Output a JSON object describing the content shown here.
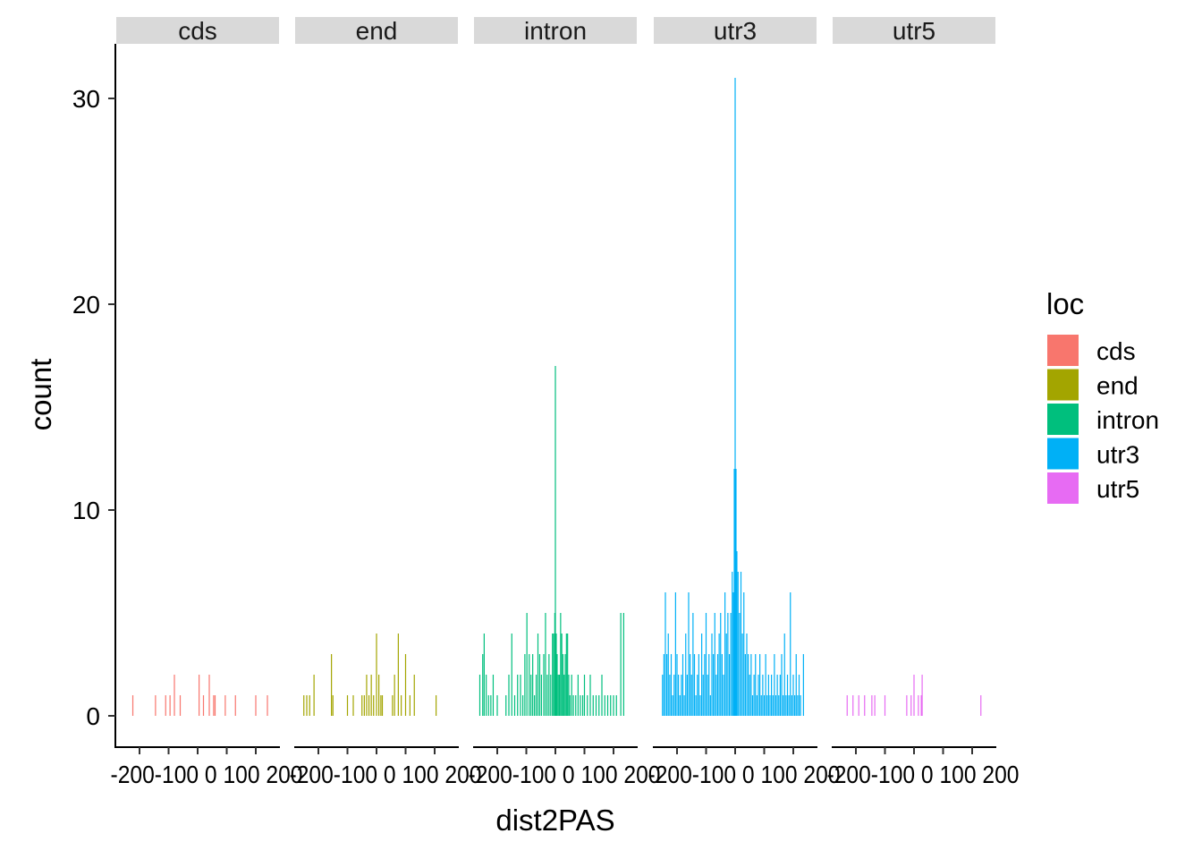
{
  "chart_data": {
    "type": "bar",
    "subtype": "faceted-histogram",
    "xlabel": "dist2PAS",
    "ylabel": "count",
    "ylim": [
      0,
      32
    ],
    "xlim": [
      -280,
      280
    ],
    "y_ticks": [
      0,
      10,
      20,
      30
    ],
    "x_ticks": [
      -200,
      -100,
      0,
      100,
      200
    ],
    "x_tick_label_text": "-200-100 0 100 200",
    "bar_width": 2,
    "legend": {
      "title": "loc",
      "position": "right",
      "items": [
        {
          "label": "cds",
          "color": "#F8766D"
        },
        {
          "label": "end",
          "color": "#A3A500"
        },
        {
          "label": "intron",
          "color": "#00BF7D"
        },
        {
          "label": "utr3",
          "color": "#00B0F6"
        },
        {
          "label": "utr5",
          "color": "#E76BF3"
        }
      ]
    },
    "facets": [
      {
        "label": "cds",
        "color": "#F8766D",
        "bars": [
          {
            "x": -223,
            "y": 1
          },
          {
            "x": -145,
            "y": 1
          },
          {
            "x": -110,
            "y": 1
          },
          {
            "x": -95,
            "y": 1
          },
          {
            "x": -80,
            "y": 2
          },
          {
            "x": -60,
            "y": 1
          },
          {
            "x": 5,
            "y": 2
          },
          {
            "x": 20,
            "y": 1
          },
          {
            "x": 40,
            "y": 2
          },
          {
            "x": 55,
            "y": 1
          },
          {
            "x": 60,
            "y": 1
          },
          {
            "x": 95,
            "y": 1
          },
          {
            "x": 130,
            "y": 1
          },
          {
            "x": 200,
            "y": 1
          },
          {
            "x": 240,
            "y": 1
          }
        ]
      },
      {
        "label": "end",
        "color": "#A3A500",
        "bars": [
          {
            "x": -250,
            "y": 1
          },
          {
            "x": -240,
            "y": 1
          },
          {
            "x": -230,
            "y": 1
          },
          {
            "x": -215,
            "y": 2
          },
          {
            "x": -155,
            "y": 3
          },
          {
            "x": -150,
            "y": 1
          },
          {
            "x": -100,
            "y": 1
          },
          {
            "x": -80,
            "y": 1
          },
          {
            "x": -50,
            "y": 1
          },
          {
            "x": -42,
            "y": 1
          },
          {
            "x": -34,
            "y": 2
          },
          {
            "x": -26,
            "y": 1
          },
          {
            "x": -18,
            "y": 2
          },
          {
            "x": -10,
            "y": 1
          },
          {
            "x": 0,
            "y": 4
          },
          {
            "x": 8,
            "y": 2
          },
          {
            "x": 15,
            "y": 1
          },
          {
            "x": 20,
            "y": 1
          },
          {
            "x": 55,
            "y": 1
          },
          {
            "x": 62,
            "y": 2
          },
          {
            "x": 75,
            "y": 4
          },
          {
            "x": 85,
            "y": 1
          },
          {
            "x": 100,
            "y": 3
          },
          {
            "x": 115,
            "y": 1
          },
          {
            "x": 130,
            "y": 2
          },
          {
            "x": 205,
            "y": 1
          }
        ]
      },
      {
        "label": "intron",
        "color": "#00BF7D",
        "bars": [
          {
            "x": -260,
            "y": 2
          },
          {
            "x": -250,
            "y": 3
          },
          {
            "x": -245,
            "y": 4
          },
          {
            "x": -238,
            "y": 2
          },
          {
            "x": -230,
            "y": 1
          },
          {
            "x": -222,
            "y": 1
          },
          {
            "x": -214,
            "y": 2
          },
          {
            "x": -200,
            "y": 1
          },
          {
            "x": -170,
            "y": 1
          },
          {
            "x": -160,
            "y": 2
          },
          {
            "x": -150,
            "y": 4
          },
          {
            "x": -140,
            "y": 1
          },
          {
            "x": -130,
            "y": 2
          },
          {
            "x": -120,
            "y": 2
          },
          {
            "x": -112,
            "y": 1
          },
          {
            "x": -105,
            "y": 3
          },
          {
            "x": -98,
            "y": 5
          },
          {
            "x": -90,
            "y": 3
          },
          {
            "x": -84,
            "y": 2
          },
          {
            "x": -78,
            "y": 3
          },
          {
            "x": -72,
            "y": 1
          },
          {
            "x": -66,
            "y": 2
          },
          {
            "x": -60,
            "y": 4
          },
          {
            "x": -54,
            "y": 3
          },
          {
            "x": -48,
            "y": 2
          },
          {
            "x": -40,
            "y": 3
          },
          {
            "x": -34,
            "y": 5
          },
          {
            "x": -28,
            "y": 2
          },
          {
            "x": -22,
            "y": 3
          },
          {
            "x": -16,
            "y": 2
          },
          {
            "x": -10,
            "y": 4
          },
          {
            "x": -6,
            "y": 4
          },
          {
            "x": -2,
            "y": 5
          },
          {
            "x": 0,
            "y": 17
          },
          {
            "x": 3,
            "y": 4
          },
          {
            "x": 6,
            "y": 3
          },
          {
            "x": 10,
            "y": 2
          },
          {
            "x": 14,
            "y": 2
          },
          {
            "x": 18,
            "y": 5
          },
          {
            "x": 22,
            "y": 4
          },
          {
            "x": 26,
            "y": 3
          },
          {
            "x": 30,
            "y": 2
          },
          {
            "x": 34,
            "y": 3
          },
          {
            "x": 38,
            "y": 4
          },
          {
            "x": 42,
            "y": 4
          },
          {
            "x": 46,
            "y": 2
          },
          {
            "x": 50,
            "y": 1
          },
          {
            "x": 56,
            "y": 2
          },
          {
            "x": 62,
            "y": 1
          },
          {
            "x": 70,
            "y": 1
          },
          {
            "x": 78,
            "y": 2
          },
          {
            "x": 86,
            "y": 1
          },
          {
            "x": 94,
            "y": 1
          },
          {
            "x": 100,
            "y": 2
          },
          {
            "x": 110,
            "y": 1
          },
          {
            "x": 120,
            "y": 2
          },
          {
            "x": 130,
            "y": 1
          },
          {
            "x": 140,
            "y": 1
          },
          {
            "x": 150,
            "y": 1
          },
          {
            "x": 160,
            "y": 2
          },
          {
            "x": 170,
            "y": 1
          },
          {
            "x": 180,
            "y": 1
          },
          {
            "x": 190,
            "y": 1
          },
          {
            "x": 200,
            "y": 1
          },
          {
            "x": 210,
            "y": 1
          },
          {
            "x": 225,
            "y": 5
          },
          {
            "x": 235,
            "y": 5
          }
        ]
      },
      {
        "label": "utr3",
        "color": "#00B0F6",
        "bars": [
          {
            "x": -250,
            "y": 2
          },
          {
            "x": -245,
            "y": 3
          },
          {
            "x": -240,
            "y": 6
          },
          {
            "x": -235,
            "y": 3
          },
          {
            "x": -230,
            "y": 4
          },
          {
            "x": -225,
            "y": 2
          },
          {
            "x": -220,
            "y": 3
          },
          {
            "x": -215,
            "y": 1
          },
          {
            "x": -210,
            "y": 2
          },
          {
            "x": -205,
            "y": 6
          },
          {
            "x": -200,
            "y": 3
          },
          {
            "x": -195,
            "y": 2
          },
          {
            "x": -190,
            "y": 1
          },
          {
            "x": -185,
            "y": 2
          },
          {
            "x": -180,
            "y": 3
          },
          {
            "x": -175,
            "y": 1
          },
          {
            "x": -170,
            "y": 4
          },
          {
            "x": -165,
            "y": 2
          },
          {
            "x": -160,
            "y": 6
          },
          {
            "x": -155,
            "y": 3
          },
          {
            "x": -150,
            "y": 2
          },
          {
            "x": -145,
            "y": 5
          },
          {
            "x": -140,
            "y": 3
          },
          {
            "x": -135,
            "y": 1
          },
          {
            "x": -130,
            "y": 2
          },
          {
            "x": -125,
            "y": 3
          },
          {
            "x": -120,
            "y": 1
          },
          {
            "x": -115,
            "y": 4
          },
          {
            "x": -110,
            "y": 2
          },
          {
            "x": -105,
            "y": 3
          },
          {
            "x": -100,
            "y": 5
          },
          {
            "x": -95,
            "y": 2
          },
          {
            "x": -90,
            "y": 3
          },
          {
            "x": -85,
            "y": 1
          },
          {
            "x": -80,
            "y": 4
          },
          {
            "x": -75,
            "y": 3
          },
          {
            "x": -70,
            "y": 5
          },
          {
            "x": -65,
            "y": 2
          },
          {
            "x": -60,
            "y": 3
          },
          {
            "x": -55,
            "y": 4
          },
          {
            "x": -50,
            "y": 5
          },
          {
            "x": -45,
            "y": 3
          },
          {
            "x": -40,
            "y": 2
          },
          {
            "x": -35,
            "y": 6
          },
          {
            "x": -30,
            "y": 4
          },
          {
            "x": -25,
            "y": 5
          },
          {
            "x": -20,
            "y": 3
          },
          {
            "x": -15,
            "y": 5
          },
          {
            "x": -10,
            "y": 7
          },
          {
            "x": -6,
            "y": 6
          },
          {
            "x": -3,
            "y": 12
          },
          {
            "x": 0,
            "y": 31
          },
          {
            "x": 3,
            "y": 12
          },
          {
            "x": 6,
            "y": 8
          },
          {
            "x": 10,
            "y": 7
          },
          {
            "x": 15,
            "y": 5
          },
          {
            "x": 20,
            "y": 7
          },
          {
            "x": 25,
            "y": 4
          },
          {
            "x": 30,
            "y": 6
          },
          {
            "x": 35,
            "y": 3
          },
          {
            "x": 40,
            "y": 4
          },
          {
            "x": 45,
            "y": 3
          },
          {
            "x": 50,
            "y": 2
          },
          {
            "x": 55,
            "y": 3
          },
          {
            "x": 60,
            "y": 1
          },
          {
            "x": 65,
            "y": 2
          },
          {
            "x": 70,
            "y": 3
          },
          {
            "x": 75,
            "y": 1
          },
          {
            "x": 80,
            "y": 2
          },
          {
            "x": 85,
            "y": 3
          },
          {
            "x": 90,
            "y": 1
          },
          {
            "x": 95,
            "y": 2
          },
          {
            "x": 100,
            "y": 1
          },
          {
            "x": 105,
            "y": 3
          },
          {
            "x": 110,
            "y": 1
          },
          {
            "x": 115,
            "y": 2
          },
          {
            "x": 120,
            "y": 1
          },
          {
            "x": 125,
            "y": 2
          },
          {
            "x": 130,
            "y": 1
          },
          {
            "x": 135,
            "y": 3
          },
          {
            "x": 140,
            "y": 1
          },
          {
            "x": 145,
            "y": 2
          },
          {
            "x": 150,
            "y": 1
          },
          {
            "x": 155,
            "y": 2
          },
          {
            "x": 160,
            "y": 3
          },
          {
            "x": 165,
            "y": 1
          },
          {
            "x": 170,
            "y": 4
          },
          {
            "x": 175,
            "y": 1
          },
          {
            "x": 180,
            "y": 2
          },
          {
            "x": 185,
            "y": 1
          },
          {
            "x": 190,
            "y": 6
          },
          {
            "x": 195,
            "y": 1
          },
          {
            "x": 200,
            "y": 2
          },
          {
            "x": 205,
            "y": 1
          },
          {
            "x": 210,
            "y": 3
          },
          {
            "x": 215,
            "y": 1
          },
          {
            "x": 220,
            "y": 2
          },
          {
            "x": 225,
            "y": 1
          },
          {
            "x": 235,
            "y": 3
          }
        ]
      },
      {
        "label": "utr5",
        "color": "#E76BF3",
        "bars": [
          {
            "x": -230,
            "y": 1
          },
          {
            "x": -210,
            "y": 1
          },
          {
            "x": -190,
            "y": 1
          },
          {
            "x": -170,
            "y": 1
          },
          {
            "x": -145,
            "y": 1
          },
          {
            "x": -135,
            "y": 1
          },
          {
            "x": -100,
            "y": 1
          },
          {
            "x": -25,
            "y": 1
          },
          {
            "x": -10,
            "y": 1
          },
          {
            "x": 0,
            "y": 2
          },
          {
            "x": 15,
            "y": 1
          },
          {
            "x": 25,
            "y": 1
          },
          {
            "x": 28,
            "y": 2
          },
          {
            "x": 230,
            "y": 1
          }
        ]
      }
    ]
  }
}
